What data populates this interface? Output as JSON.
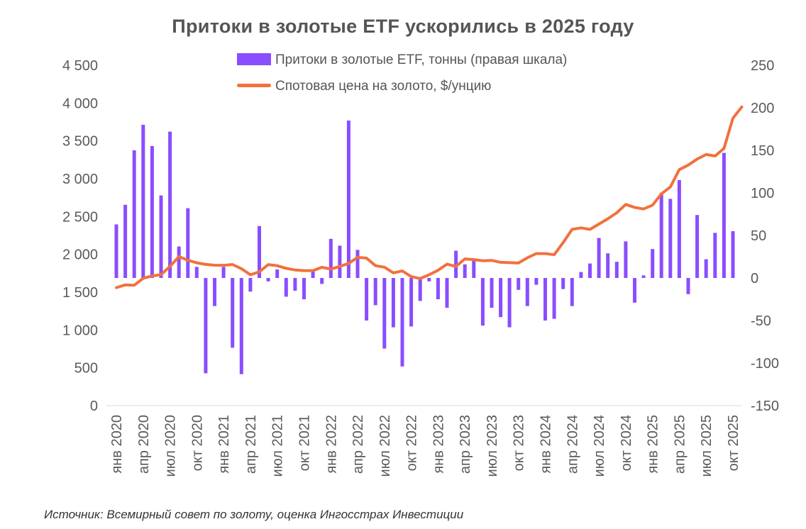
{
  "title": "Притоки в золотые ETF ускорились в 2025 году",
  "legend": {
    "bars": "Притоки в золотые ETF, тонны (правая шкала)",
    "line": "Спотовая цена на золото, $/унцию"
  },
  "source": "Источник: Всемирный совет по золоту, оценка Ингосстрах Инвестиции",
  "colors": {
    "bars": "#8A4DFF",
    "line": "#F2703D",
    "text": "#555555"
  },
  "chart_data": {
    "type": "bar+line",
    "left_axis": {
      "min": 0,
      "max": 4500,
      "ticks": [
        "0",
        "500",
        "1 000",
        "1 500",
        "2 000",
        "2 500",
        "3 000",
        "3 500",
        "4 000",
        "4 500"
      ]
    },
    "right_axis": {
      "min": -150,
      "max": 250,
      "ticks": [
        "-150",
        "-100",
        "-50",
        "0",
        "50",
        "100",
        "150",
        "200",
        "250"
      ]
    },
    "x_labels": [
      "янв 2020",
      "апр 2020",
      "июл 2020",
      "окт 2020",
      "янв 2021",
      "апр 2021",
      "июл 2021",
      "окт 2021",
      "янв 2022",
      "апр 2022",
      "июл 2022",
      "окт 2022",
      "янв 2023",
      "апр 2023",
      "июл 2023",
      "окт 2023",
      "янв 2024",
      "апр 2024",
      "июл 2024",
      "окт 2024",
      "янв 2025",
      "апр 2025",
      "июл 2025",
      "окт 2025"
    ],
    "series": [
      {
        "name": "Притоки в золотые ETF, тонны (правая шкала)",
        "axis": "right",
        "type": "bar",
        "values": [
          63,
          86,
          150,
          180,
          155,
          97,
          172,
          37,
          82,
          13,
          -112,
          -33,
          13,
          -82,
          -113,
          -16,
          61,
          -4,
          10,
          -22,
          -15,
          -25,
          8,
          -7,
          46,
          38,
          185,
          33,
          -50,
          -32,
          -83,
          -58,
          -104,
          -57,
          -27,
          -4,
          -25,
          -35,
          32,
          16,
          20,
          -56,
          -35,
          -46,
          -58,
          -14,
          -33,
          -8,
          -50,
          -48,
          -13,
          -33,
          7,
          17,
          47,
          29,
          19,
          43,
          -29,
          3,
          34,
          100,
          93,
          115,
          -19,
          74,
          22,
          53,
          147,
          55
        ]
      },
      {
        "name": "Спотовая цена на золото, $/унцию",
        "axis": "left",
        "type": "line",
        "values": [
          1560,
          1597,
          1592,
          1683,
          1715,
          1732,
          1840,
          1970,
          1922,
          1888,
          1867,
          1856,
          1855,
          1866,
          1810,
          1730,
          1769,
          1865,
          1850,
          1815,
          1793,
          1785,
          1785,
          1829,
          1805,
          1840,
          1880,
          1960,
          1950,
          1850,
          1830,
          1755,
          1780,
          1705,
          1680,
          1730,
          1790,
          1870,
          1840,
          1940,
          1930,
          1915,
          1920,
          1895,
          1890,
          1885,
          1955,
          2010,
          2010,
          1995,
          2155,
          2330,
          2350,
          2330,
          2400,
          2470,
          2550,
          2660,
          2620,
          2600,
          2650,
          2800,
          2890,
          3120,
          3180,
          3260,
          3320,
          3300,
          3400,
          3800,
          3950
        ]
      }
    ]
  }
}
